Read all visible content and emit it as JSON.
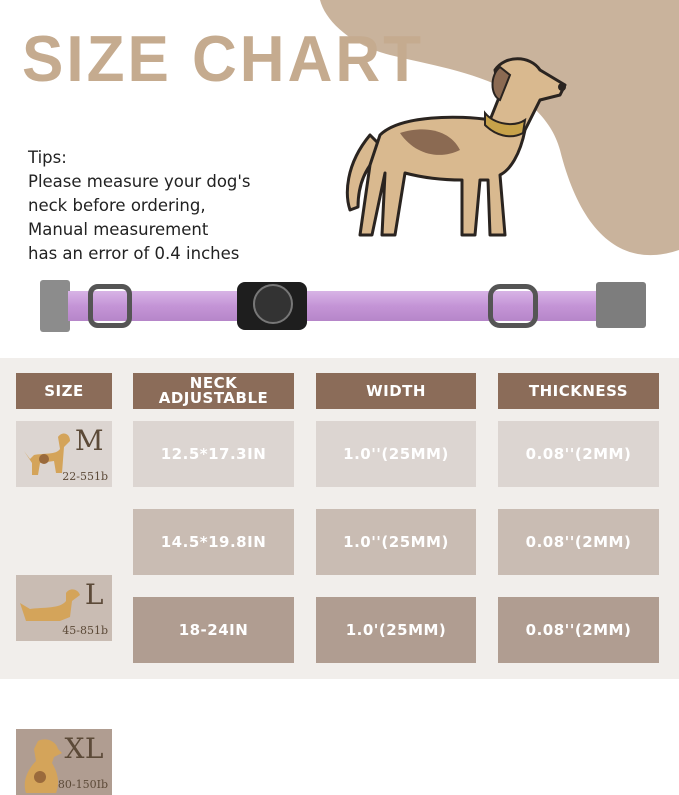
{
  "title": "SIZE CHART",
  "tips": [
    "Tips:",
    "Please measure your dog's",
    "neck before ordering,",
    "Manual measurement",
    "has an error of 0.4 inches"
  ],
  "colors": {
    "header": "#8b6c59",
    "title": "#c5ab8f",
    "blob": "#c9b39c",
    "row_m": "#dcd5d1",
    "row_l": "#c9bcb3",
    "row_xl": "#b09d91",
    "collar": "#c79bd8"
  },
  "table": {
    "headers": [
      "SIZE",
      "NECK ADJUSTABLE",
      "WIDTH",
      "THICKNESS"
    ],
    "rows": [
      {
        "size": "M",
        "weight": "22-551b",
        "neck": "12.5*17.3IN",
        "width": "1.0''(25MM)",
        "thickness": "0.08''(2MM)"
      },
      {
        "size": "L",
        "weight": "45-851b",
        "neck": "14.5*19.8IN",
        "width": "1.0''(25MM)",
        "thickness": "0.08''(2MM)"
      },
      {
        "size": "XL",
        "weight": "80-150Ib",
        "neck": "18-24IN",
        "width": "1.0'(25MM)",
        "thickness": "0.08''(2MM)"
      }
    ]
  }
}
